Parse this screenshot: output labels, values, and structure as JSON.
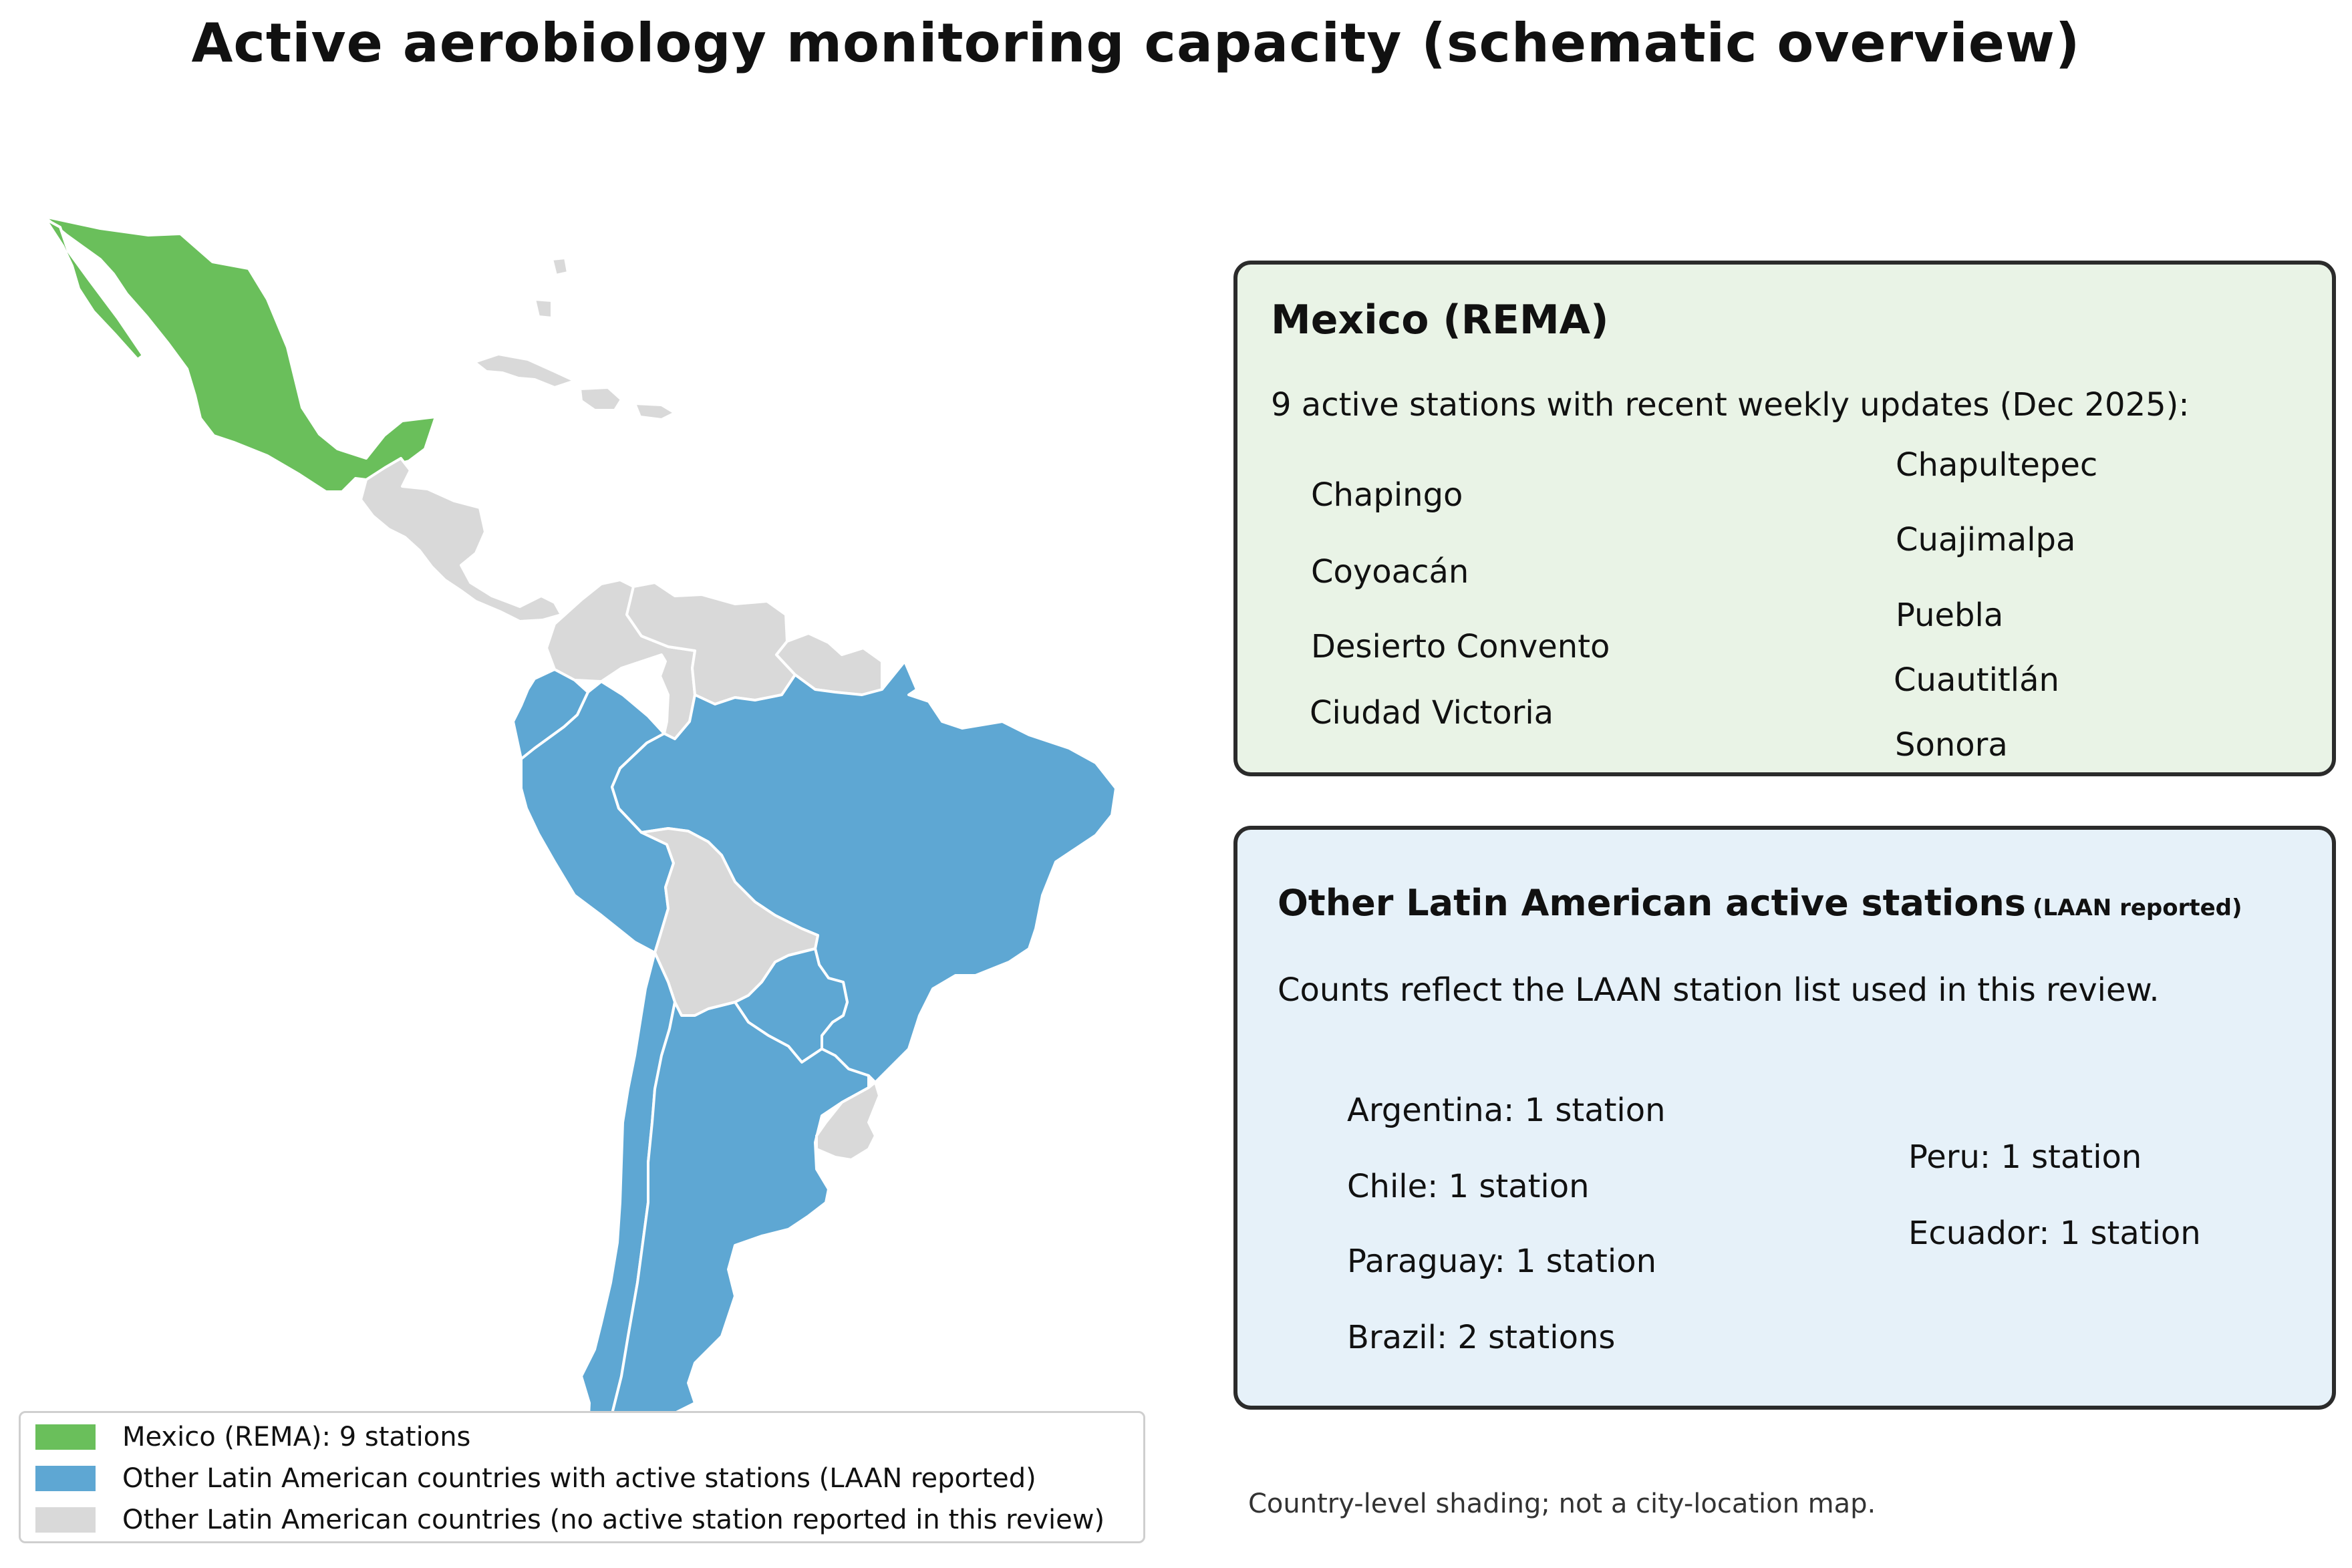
{
  "title": "Active aerobiology monitoring capacity (schematic overview)",
  "colors": {
    "mexico": "#6abf5b",
    "laan": "#5ea7d3",
    "none": "#d9d9d9",
    "mexico_panel_bg": "#e9f3e6",
    "laan_panel_bg": "#e6f1f9"
  },
  "map": {
    "regions": [
      {
        "name": "Mexico",
        "category": "mexico"
      },
      {
        "name": "Central America",
        "category": "none"
      },
      {
        "name": "Caribbean",
        "category": "none"
      },
      {
        "name": "Colombia",
        "category": "none"
      },
      {
        "name": "Venezuela",
        "category": "none"
      },
      {
        "name": "Guianas",
        "category": "none"
      },
      {
        "name": "Ecuador",
        "category": "laan"
      },
      {
        "name": "Peru",
        "category": "laan"
      },
      {
        "name": "Brazil",
        "category": "laan"
      },
      {
        "name": "Bolivia",
        "category": "none"
      },
      {
        "name": "Paraguay",
        "category": "laan"
      },
      {
        "name": "Chile",
        "category": "laan"
      },
      {
        "name": "Argentina",
        "category": "laan"
      },
      {
        "name": "Uruguay",
        "category": "none"
      }
    ]
  },
  "mexico_panel": {
    "title": "Mexico (REMA)",
    "subtitle": "9 active stations with recent weekly updates (Dec 2025):",
    "stations_left": [
      "Chapingo",
      "Coyoacán",
      "Desierto Convento",
      "Ciudad Victoria"
    ],
    "stations_right": [
      "Chapultepec",
      "Cuajimalpa",
      "Puebla",
      "Cuautitlán",
      "Sonora"
    ]
  },
  "other_panel": {
    "title": "Other Latin American active stations",
    "title_note": "(LAAN reported)",
    "subtitle": "Counts reflect the LAAN station list used in this review.",
    "counts_left": [
      "Argentina: 1 station",
      "Chile: 1 station",
      "Paraguay: 1 station",
      "Brazil: 2 stations"
    ],
    "counts_right": [
      "Peru: 1 station",
      "Ecuador: 1 station"
    ]
  },
  "legend": {
    "items": [
      {
        "label": "Mexico (REMA): 9 stations",
        "color": "#6abf5b"
      },
      {
        "label": "Other Latin American countries with active stations (LAAN reported)",
        "color": "#5ea7d3"
      },
      {
        "label": "Other Latin American countries (no active station reported in this review)",
        "color": "#d9d9d9"
      }
    ]
  },
  "footnote": "Country-level shading; not a city-location map."
}
